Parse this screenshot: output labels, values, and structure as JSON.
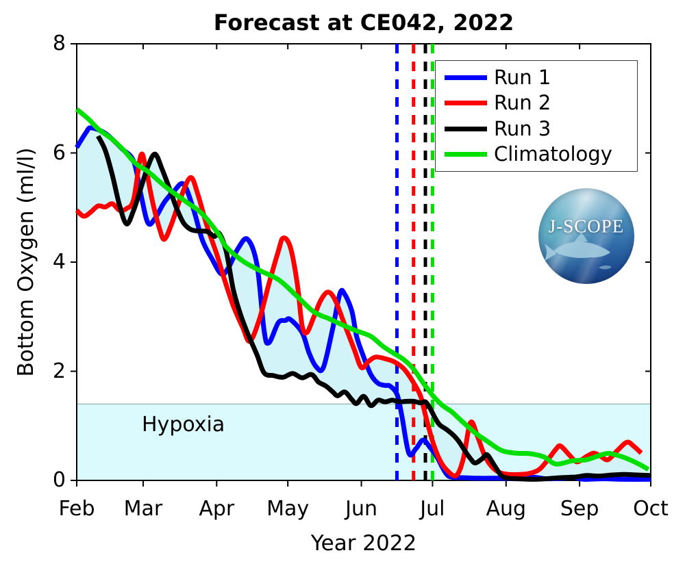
{
  "title": "Forecast at CE042, 2022",
  "axes": {
    "ylabel": "Bottom Oxygen (ml/l)",
    "xlabel": "Year 2022",
    "yticks": [
      0,
      2,
      4,
      6,
      8
    ],
    "ylim": [
      0,
      8
    ]
  },
  "hypoxia": {
    "label": "Hypoxia",
    "threshold": 1.4,
    "fill": "#dafafd",
    "edge": "#96bcbe"
  },
  "logo": {
    "text": "J-SCOPE"
  },
  "chart_data": {
    "type": "line",
    "title": "Forecast at CE042, 2022",
    "xlabel": "Year 2022",
    "ylabel": "Bottom Oxygen (ml/l)",
    "ylim": [
      0,
      8
    ],
    "grid": false,
    "legend_position": "upper right",
    "x_axis": {
      "unit": "days since Feb 1, 2022",
      "range_days": [
        0,
        242
      ],
      "tick_days": [
        0,
        28,
        59,
        89,
        120,
        150,
        181,
        212,
        242
      ],
      "tick_labels": [
        "Feb",
        "Mar",
        "Apr",
        "May",
        "Jun",
        "Jul",
        "Aug",
        "Sep",
        "Oct"
      ]
    },
    "hypoxia_threshold_mll": 1.4,
    "envelope": {
      "description": "min-max spread across Run 1, Run 2, Run 3",
      "fill": "#d2f3f7"
    },
    "vertical_dashed_lines": [
      {
        "name": "Run 1 hypoxia onset",
        "day": 135,
        "color": "#0000ff"
      },
      {
        "name": "Run 2 hypoxia onset",
        "day": 142,
        "color": "#ff0000"
      },
      {
        "name": "Run 3 hypoxia onset",
        "day": 147,
        "color": "#000000"
      },
      {
        "name": "Climatology hypoxia onset",
        "day": 150,
        "color": "#00df00"
      }
    ],
    "series": [
      {
        "name": "Run 1",
        "color": "#0000ff",
        "in_envelope": true,
        "points": [
          [
            0,
            6.1
          ],
          [
            4,
            6.38
          ],
          [
            6,
            6.46
          ],
          [
            12,
            6.36
          ],
          [
            19,
            6.08
          ],
          [
            24,
            5.85
          ],
          [
            27,
            5.25
          ],
          [
            30,
            4.72
          ],
          [
            33,
            4.8
          ],
          [
            37,
            5.1
          ],
          [
            41,
            5.3
          ],
          [
            45,
            5.43
          ],
          [
            49,
            5.0
          ],
          [
            53,
            4.4
          ],
          [
            57,
            4.06
          ],
          [
            61,
            3.78
          ],
          [
            64,
            3.9
          ],
          [
            68,
            4.25
          ],
          [
            72,
            4.42
          ],
          [
            76,
            3.95
          ],
          [
            79,
            2.74
          ],
          [
            81,
            2.52
          ],
          [
            85,
            2.89
          ],
          [
            88,
            2.93
          ],
          [
            90,
            2.95
          ],
          [
            95,
            2.71
          ],
          [
            98,
            2.33
          ],
          [
            101,
            2.08
          ],
          [
            104,
            2.07
          ],
          [
            108,
            2.8
          ],
          [
            111,
            3.43
          ],
          [
            113,
            3.41
          ],
          [
            116,
            3.1
          ],
          [
            118,
            2.64
          ],
          [
            121,
            2.26
          ],
          [
            124,
            1.94
          ],
          [
            127,
            1.78
          ],
          [
            130,
            1.74
          ],
          [
            132,
            1.73
          ],
          [
            135,
            1.58
          ],
          [
            137,
            1.2
          ],
          [
            140,
            0.5
          ],
          [
            143,
            0.58
          ],
          [
            146,
            0.74
          ],
          [
            149,
            0.6
          ],
          [
            152,
            0.42
          ],
          [
            154,
            0.25
          ],
          [
            156,
            0.11
          ],
          [
            158,
            0.06
          ],
          [
            163,
            0.05
          ],
          [
            170,
            0.04
          ],
          [
            178,
            0.04
          ],
          [
            186,
            0.03
          ],
          [
            192,
            0.06
          ],
          [
            198,
            0.03
          ],
          [
            205,
            0.04
          ],
          [
            209,
            0.06
          ],
          [
            214,
            0.02
          ],
          [
            222,
            0.03
          ],
          [
            230,
            0.02
          ],
          [
            242,
            0.02
          ]
        ]
      },
      {
        "name": "Run 2",
        "color": "#ff0000",
        "in_envelope": true,
        "points": [
          [
            0,
            4.95
          ],
          [
            3,
            4.84
          ],
          [
            6,
            4.92
          ],
          [
            9,
            5.03
          ],
          [
            12,
            5.01
          ],
          [
            15,
            5.07
          ],
          [
            18,
            4.95
          ],
          [
            21,
            4.98
          ],
          [
            24,
            5.15
          ],
          [
            27,
            5.95
          ],
          [
            29,
            5.75
          ],
          [
            32,
            5.1
          ],
          [
            35,
            4.6
          ],
          [
            37,
            4.42
          ],
          [
            40,
            4.7
          ],
          [
            44,
            5.2
          ],
          [
            48,
            5.55
          ],
          [
            51,
            5.25
          ],
          [
            55,
            4.65
          ],
          [
            59,
            4.15
          ],
          [
            62,
            3.72
          ],
          [
            66,
            3.2
          ],
          [
            70,
            2.8
          ],
          [
            73,
            2.55
          ],
          [
            77,
            2.95
          ],
          [
            81,
            3.6
          ],
          [
            85,
            4.2
          ],
          [
            87,
            4.44
          ],
          [
            90,
            4.28
          ],
          [
            93,
            3.6
          ],
          [
            95,
            2.84
          ],
          [
            97,
            2.71
          ],
          [
            100,
            3.0
          ],
          [
            103,
            3.31
          ],
          [
            106,
            3.45
          ],
          [
            109,
            3.3
          ],
          [
            113,
            2.85
          ],
          [
            117,
            2.4
          ],
          [
            120,
            2.07
          ],
          [
            123,
            2.18
          ],
          [
            126,
            2.26
          ],
          [
            130,
            2.23
          ],
          [
            134,
            2.17
          ],
          [
            138,
            2.04
          ],
          [
            142,
            1.79
          ],
          [
            145,
            1.54
          ],
          [
            147,
            1.2
          ],
          [
            150,
            0.72
          ],
          [
            153,
            0.38
          ],
          [
            156,
            0.19
          ],
          [
            160,
            0.09
          ],
          [
            163,
            0.4
          ],
          [
            166,
            1.06
          ],
          [
            169,
            0.8
          ],
          [
            172,
            0.45
          ],
          [
            175,
            0.25
          ],
          [
            178,
            0.15
          ],
          [
            182,
            0.11
          ],
          [
            187,
            0.11
          ],
          [
            191,
            0.13
          ],
          [
            195,
            0.2
          ],
          [
            199,
            0.4
          ],
          [
            202,
            0.57
          ],
          [
            204,
            0.63
          ],
          [
            208,
            0.45
          ],
          [
            211,
            0.34
          ],
          [
            215,
            0.44
          ],
          [
            218,
            0.5
          ],
          [
            221,
            0.44
          ],
          [
            224,
            0.38
          ],
          [
            228,
            0.55
          ],
          [
            232,
            0.7
          ],
          [
            235,
            0.62
          ],
          [
            238,
            0.5
          ]
        ]
      },
      {
        "name": "Run 3",
        "color": "#000000",
        "in_envelope": true,
        "points": [
          [
            9,
            6.31
          ],
          [
            12,
            6.05
          ],
          [
            15,
            5.6
          ],
          [
            18,
            5.05
          ],
          [
            21,
            4.7
          ],
          [
            24,
            4.95
          ],
          [
            27,
            5.35
          ],
          [
            30,
            5.75
          ],
          [
            33,
            5.98
          ],
          [
            36,
            5.7
          ],
          [
            39,
            5.36
          ],
          [
            42,
            5.0
          ],
          [
            45,
            4.72
          ],
          [
            48,
            4.6
          ],
          [
            51,
            4.57
          ],
          [
            55,
            4.56
          ],
          [
            58,
            4.47
          ],
          [
            60,
            4.53
          ],
          [
            63,
            4.2
          ],
          [
            66,
            3.5
          ],
          [
            69,
            3.05
          ],
          [
            72,
            2.7
          ],
          [
            76,
            2.3
          ],
          [
            79,
            1.97
          ],
          [
            83,
            1.92
          ],
          [
            87,
            1.89
          ],
          [
            91,
            1.96
          ],
          [
            95,
            1.88
          ],
          [
            99,
            1.94
          ],
          [
            102,
            1.8
          ],
          [
            105,
            1.73
          ],
          [
            108,
            1.62
          ],
          [
            110,
            1.55
          ],
          [
            113,
            1.62
          ],
          [
            116,
            1.48
          ],
          [
            118,
            1.41
          ],
          [
            121,
            1.54
          ],
          [
            124,
            1.37
          ],
          [
            127,
            1.47
          ],
          [
            130,
            1.44
          ],
          [
            133,
            1.47
          ],
          [
            136,
            1.44
          ],
          [
            139,
            1.45
          ],
          [
            142,
            1.45
          ],
          [
            145,
            1.42
          ],
          [
            147,
            1.44
          ],
          [
            149,
            1.32
          ],
          [
            151,
            1.15
          ],
          [
            153,
            1.02
          ],
          [
            156,
            0.93
          ],
          [
            159,
            0.82
          ],
          [
            161,
            0.72
          ],
          [
            164,
            0.52
          ],
          [
            166,
            0.4
          ],
          [
            168,
            0.32
          ],
          [
            171,
            0.4
          ],
          [
            173,
            0.47
          ],
          [
            176,
            0.28
          ],
          [
            179,
            0.09
          ],
          [
            182,
            0.04
          ],
          [
            186,
            0.03
          ],
          [
            192,
            0.02
          ],
          [
            198,
            0.03
          ],
          [
            204,
            0.05
          ],
          [
            210,
            0.06
          ],
          [
            215,
            0.09
          ],
          [
            220,
            0.08
          ],
          [
            226,
            0.1
          ],
          [
            231,
            0.11
          ],
          [
            236,
            0.1
          ],
          [
            242,
            0.09
          ]
        ]
      },
      {
        "name": "Climatology",
        "color": "#00df00",
        "in_envelope": false,
        "points": [
          [
            0,
            6.8
          ],
          [
            5,
            6.62
          ],
          [
            9,
            6.44
          ],
          [
            15,
            6.25
          ],
          [
            20,
            6.04
          ],
          [
            25,
            5.8
          ],
          [
            30,
            5.66
          ],
          [
            38,
            5.36
          ],
          [
            46,
            5.11
          ],
          [
            53,
            4.88
          ],
          [
            60,
            4.5
          ],
          [
            63,
            4.28
          ],
          [
            70,
            4.02
          ],
          [
            77,
            3.85
          ],
          [
            85,
            3.68
          ],
          [
            92,
            3.41
          ],
          [
            99,
            3.12
          ],
          [
            103,
            3.02
          ],
          [
            106,
            2.97
          ],
          [
            112,
            2.85
          ],
          [
            118,
            2.74
          ],
          [
            124,
            2.64
          ],
          [
            129,
            2.46
          ],
          [
            134,
            2.32
          ],
          [
            138,
            2.21
          ],
          [
            142,
            2.04
          ],
          [
            146,
            1.79
          ],
          [
            150,
            1.56
          ],
          [
            154,
            1.38
          ],
          [
            158,
            1.26
          ],
          [
            162,
            1.1
          ],
          [
            168,
            0.87
          ],
          [
            173,
            0.72
          ],
          [
            179,
            0.55
          ],
          [
            185,
            0.5
          ],
          [
            191,
            0.49
          ],
          [
            197,
            0.43
          ],
          [
            202,
            0.3
          ],
          [
            209,
            0.36
          ],
          [
            215,
            0.38
          ],
          [
            223,
            0.49
          ],
          [
            227,
            0.47
          ],
          [
            232,
            0.4
          ],
          [
            237,
            0.3
          ],
          [
            241,
            0.2
          ]
        ]
      }
    ]
  }
}
